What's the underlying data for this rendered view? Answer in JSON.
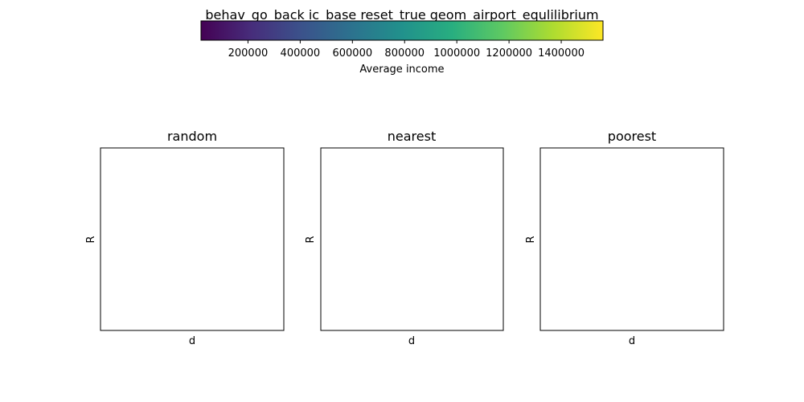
{
  "title": "behav_go_back ic_base reset_true geom_airport_equlilibrium",
  "colorbar": {
    "label": "Average income",
    "colormap": "viridis",
    "range": [
      20000,
      1560000
    ],
    "ticks": [
      "200000",
      "400000",
      "600000",
      "800000",
      "1000000",
      "1200000",
      "1400000"
    ],
    "tick_values": [
      200000,
      400000,
      600000,
      800000,
      1000000,
      1200000,
      1400000
    ]
  },
  "chart_data": [
    {
      "type": "heatmap",
      "title": "random",
      "xlabel": "d",
      "ylabel": "R",
      "values": []
    },
    {
      "type": "heatmap",
      "title": "nearest",
      "xlabel": "d",
      "ylabel": "R",
      "values": []
    },
    {
      "type": "heatmap",
      "title": "poorest",
      "xlabel": "d",
      "ylabel": "R",
      "values": []
    }
  ]
}
